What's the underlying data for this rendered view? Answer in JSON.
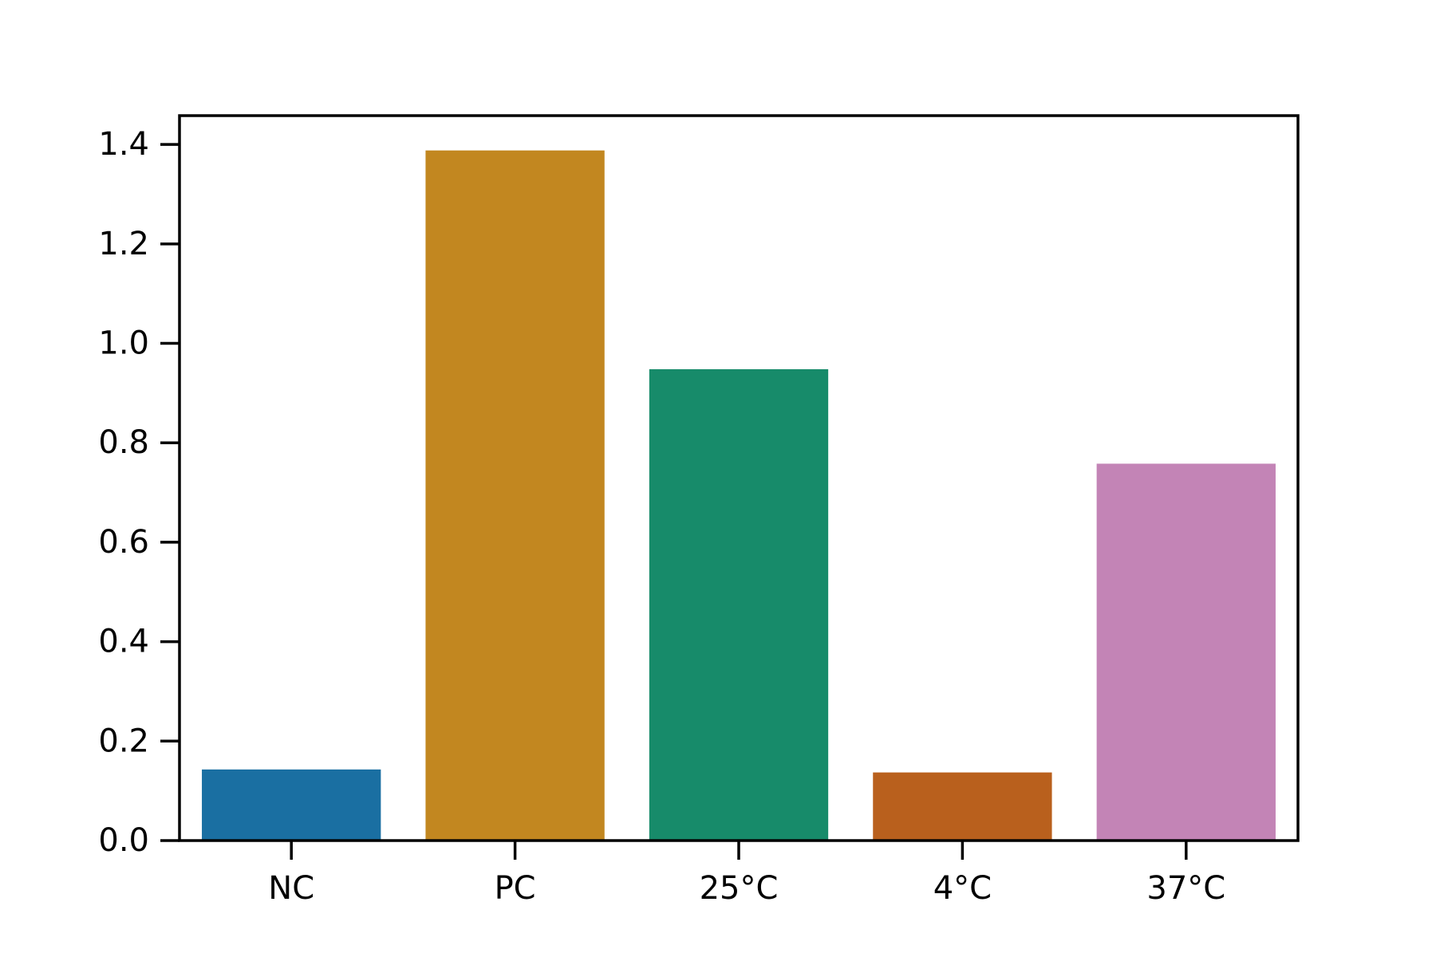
{
  "chart_data": {
    "type": "bar",
    "categories": [
      "NC",
      "PC",
      "25°C",
      "4°C",
      "37°C"
    ],
    "values": [
      0.143,
      1.388,
      0.948,
      0.137,
      0.758
    ],
    "colors": [
      "#1a6fa2",
      "#c28720",
      "#178b6a",
      "#b9601d",
      "#c384b6"
    ],
    "title": "",
    "xlabel": "",
    "ylabel": "",
    "ylim": [
      0,
      1.458
    ],
    "yticks": [
      0.0,
      0.2,
      0.4,
      0.6,
      0.8,
      1.0,
      1.2,
      1.4
    ],
    "ytick_labels": [
      "0.0",
      "0.2",
      "0.4",
      "0.6",
      "0.8",
      "1.0",
      "1.2",
      "1.4"
    ],
    "grid": false,
    "legend": "none"
  }
}
